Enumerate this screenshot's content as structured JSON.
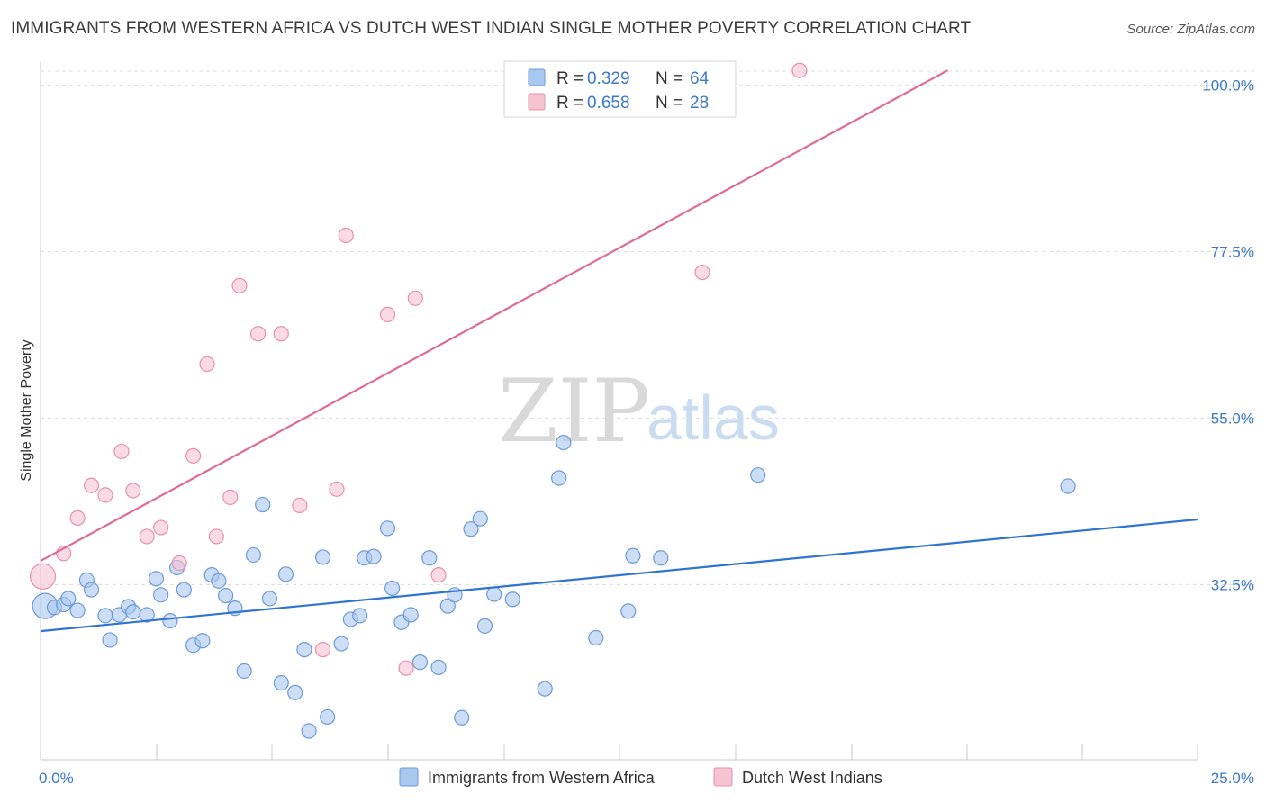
{
  "header": {
    "title": "IMMIGRANTS FROM WESTERN AFRICA VS DUTCH WEST INDIAN SINGLE MOTHER POVERTY CORRELATION CHART",
    "source": "Source: ZipAtlas.com"
  },
  "watermark": {
    "zip": "ZIP",
    "atlas": "atlas"
  },
  "legend": {
    "rows": [
      {
        "r_label": "R = ",
        "r_value": "0.329",
        "n_label": "N = ",
        "n_value": "64"
      },
      {
        "r_label": "R = ",
        "r_value": "0.658",
        "n_label": "N = ",
        "n_value": "28"
      }
    ]
  },
  "bottom_legend": {
    "items": [
      {
        "label": "Immigrants from Western Africa"
      },
      {
        "label": "Dutch West Indians"
      }
    ]
  },
  "colors": {
    "blue_fill": "#a9c8ef",
    "blue_stroke": "#6d9ad6",
    "blue_line": "#2f74d0",
    "pink_fill": "#f6c3d3",
    "pink_stroke": "#e690ad",
    "pink_line": "#e06b92",
    "tick_text": "#3a78c9",
    "grid": "#dcdcdc"
  },
  "chart_data": {
    "type": "scatter",
    "title": "IMMIGRANTS FROM WESTERN AFRICA VS DUTCH WEST INDIAN SINGLE MOTHER POVERTY CORRELATION CHART",
    "xlabel": "",
    "ylabel": "Single Mother Poverty",
    "xlim": [
      0,
      25
    ],
    "ylim": [
      11,
      103
    ],
    "x_tick_labels": [
      "0.0%",
      "25.0%"
    ],
    "y_ticks": [
      32.5,
      55.0,
      77.5,
      100.0
    ],
    "y_tick_labels": [
      "32.5%",
      "55.0%",
      "77.5%",
      "100.0%"
    ],
    "grid": true,
    "legend_position": "top-center",
    "series": [
      {
        "name": "Immigrants from Western Africa",
        "r": 0.329,
        "n": 64,
        "trend": {
          "x": [
            0,
            25
          ],
          "y": [
            26.2,
            41.3
          ]
        },
        "points": [
          [
            0.1,
            29.6
          ],
          [
            0.3,
            29.4
          ],
          [
            0.5,
            29.8
          ],
          [
            0.6,
            30.6
          ],
          [
            0.8,
            29.0
          ],
          [
            1.0,
            33.1
          ],
          [
            1.1,
            31.8
          ],
          [
            1.4,
            28.3
          ],
          [
            1.5,
            25.0
          ],
          [
            1.7,
            28.4
          ],
          [
            1.9,
            29.5
          ],
          [
            2.0,
            28.8
          ],
          [
            2.3,
            28.4
          ],
          [
            2.5,
            33.3
          ],
          [
            2.6,
            31.1
          ],
          [
            2.8,
            27.6
          ],
          [
            2.95,
            34.8
          ],
          [
            3.1,
            31.8
          ],
          [
            3.3,
            24.3
          ],
          [
            3.5,
            24.9
          ],
          [
            3.7,
            33.8
          ],
          [
            3.85,
            33.0
          ],
          [
            4.0,
            31.0
          ],
          [
            4.2,
            29.3
          ],
          [
            4.4,
            20.8
          ],
          [
            4.6,
            36.5
          ],
          [
            4.8,
            43.3
          ],
          [
            4.95,
            30.6
          ],
          [
            5.2,
            19.2
          ],
          [
            5.3,
            33.9
          ],
          [
            5.5,
            17.9
          ],
          [
            5.7,
            23.7
          ],
          [
            5.8,
            12.7
          ],
          [
            6.1,
            36.2
          ],
          [
            6.2,
            14.6
          ],
          [
            6.5,
            24.5
          ],
          [
            6.7,
            27.8
          ],
          [
            6.9,
            28.3
          ],
          [
            7.0,
            36.1
          ],
          [
            7.2,
            36.3
          ],
          [
            7.5,
            40.1
          ],
          [
            7.6,
            32.0
          ],
          [
            7.8,
            27.4
          ],
          [
            8.0,
            28.4
          ],
          [
            8.2,
            22.0
          ],
          [
            8.4,
            36.1
          ],
          [
            8.6,
            21.3
          ],
          [
            8.8,
            29.6
          ],
          [
            8.95,
            31.1
          ],
          [
            9.1,
            14.5
          ],
          [
            9.3,
            40.0
          ],
          [
            9.5,
            41.4
          ],
          [
            9.6,
            26.9
          ],
          [
            9.8,
            31.2
          ],
          [
            10.2,
            30.5
          ],
          [
            10.9,
            18.4
          ],
          [
            11.2,
            46.9
          ],
          [
            11.3,
            51.7
          ],
          [
            12.0,
            25.3
          ],
          [
            12.7,
            28.9
          ],
          [
            12.8,
            36.4
          ],
          [
            13.4,
            36.1
          ],
          [
            15.5,
            47.3
          ],
          [
            22.2,
            45.8
          ]
        ]
      },
      {
        "name": "Dutch West Indians",
        "r": 0.658,
        "n": 28,
        "trend": {
          "x": [
            0,
            19.6
          ],
          "y": [
            35.7,
            102.0
          ]
        },
        "points": [
          [
            0.05,
            33.6
          ],
          [
            0.5,
            36.7
          ],
          [
            0.8,
            41.5
          ],
          [
            1.1,
            45.9
          ],
          [
            1.4,
            44.6
          ],
          [
            1.75,
            50.5
          ],
          [
            2.0,
            45.2
          ],
          [
            2.3,
            39.0
          ],
          [
            2.6,
            40.2
          ],
          [
            3.0,
            35.4
          ],
          [
            3.3,
            49.9
          ],
          [
            3.6,
            62.3
          ],
          [
            3.8,
            39.0
          ],
          [
            4.1,
            44.3
          ],
          [
            4.3,
            72.9
          ],
          [
            4.7,
            66.4
          ],
          [
            5.2,
            66.4
          ],
          [
            5.6,
            43.2
          ],
          [
            6.1,
            23.7
          ],
          [
            6.4,
            45.4
          ],
          [
            6.6,
            79.7
          ],
          [
            7.5,
            69.0
          ],
          [
            7.9,
            21.2
          ],
          [
            8.1,
            71.2
          ],
          [
            8.6,
            33.8
          ],
          [
            14.3,
            74.7
          ],
          [
            14.5,
            102.0
          ],
          [
            16.4,
            102.0
          ]
        ]
      }
    ]
  }
}
